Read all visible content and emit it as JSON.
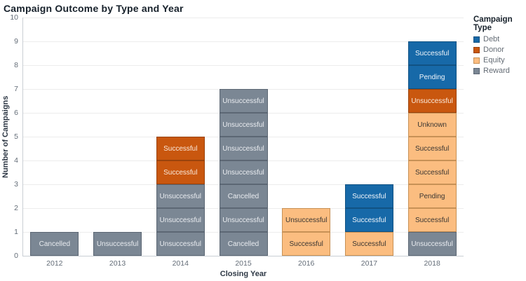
{
  "chart_data": {
    "type": "bar",
    "stacked": true,
    "title": "Campaign Outcome by Type and Year",
    "xlabel": "Closing Year",
    "ylabel": "Number of Campaigns",
    "ylim": [
      0,
      10
    ],
    "yticks": [
      0,
      1,
      2,
      3,
      4,
      5,
      6,
      7,
      8,
      9,
      10
    ],
    "grid": "horizontal",
    "legend_position": "top-right",
    "categories": [
      "2012",
      "2013",
      "2014",
      "2015",
      "2016",
      "2017",
      "2018"
    ],
    "legend": {
      "title": "Campaign Type",
      "entries": [
        {
          "label": "Debt",
          "color": "#1769a8"
        },
        {
          "label": "Donor",
          "color": "#c9570f"
        },
        {
          "label": "Equity",
          "color": "#fbbd80"
        },
        {
          "label": "Reward",
          "color": "#7b8794"
        }
      ]
    },
    "palette": {
      "Debt": {
        "fill": "#1769a8",
        "border": "#115283",
        "text": "#f0f5fa"
      },
      "Donor": {
        "fill": "#c9570f",
        "border": "#9a430c",
        "text": "#faeadd"
      },
      "Equity": {
        "fill": "#fbbd80",
        "border": "#c79156",
        "text": "#3a3632"
      },
      "Reward": {
        "fill": "#7b8794",
        "border": "#5c6774",
        "text": "#e9ecf0"
      }
    },
    "bars": [
      {
        "year": "2012",
        "total": 1,
        "segments": [
          {
            "label": "Cancelled",
            "type": "Reward",
            "value": 1
          }
        ]
      },
      {
        "year": "2013",
        "total": 1,
        "segments": [
          {
            "label": "Unsuccessful",
            "type": "Reward",
            "value": 1
          }
        ]
      },
      {
        "year": "2014",
        "total": 5,
        "segments": [
          {
            "label": "Unsuccessful",
            "type": "Reward",
            "value": 1
          },
          {
            "label": "Unsuccessful",
            "type": "Reward",
            "value": 1
          },
          {
            "label": "Unsuccessful",
            "type": "Reward",
            "value": 1
          },
          {
            "label": "Successful",
            "type": "Donor",
            "value": 1
          },
          {
            "label": "Successful",
            "type": "Donor",
            "value": 1
          }
        ]
      },
      {
        "year": "2015",
        "total": 7,
        "segments": [
          {
            "label": "Cancelled",
            "type": "Reward",
            "value": 1
          },
          {
            "label": "Unsuccessful",
            "type": "Reward",
            "value": 1
          },
          {
            "label": "Cancelled",
            "type": "Reward",
            "value": 1
          },
          {
            "label": "Unsuccessful",
            "type": "Reward",
            "value": 1
          },
          {
            "label": "Unsuccessful",
            "type": "Reward",
            "value": 1
          },
          {
            "label": "Unsuccessful",
            "type": "Reward",
            "value": 1
          },
          {
            "label": "Unsuccessful",
            "type": "Reward",
            "value": 1
          }
        ]
      },
      {
        "year": "2016",
        "total": 2,
        "segments": [
          {
            "label": "Successful",
            "type": "Equity",
            "value": 1
          },
          {
            "label": "Unsuccessful",
            "type": "Equity",
            "value": 1
          }
        ]
      },
      {
        "year": "2017",
        "total": 3,
        "segments": [
          {
            "label": "Successful",
            "type": "Equity",
            "value": 1
          },
          {
            "label": "Successful",
            "type": "Debt",
            "value": 1
          },
          {
            "label": "Successful",
            "type": "Debt",
            "value": 1
          }
        ]
      },
      {
        "year": "2018",
        "total": 9,
        "segments": [
          {
            "label": "Unsuccessful",
            "type": "Reward",
            "value": 1
          },
          {
            "label": "Successful",
            "type": "Equity",
            "value": 1
          },
          {
            "label": "Pending",
            "type": "Equity",
            "value": 1
          },
          {
            "label": "Successful",
            "type": "Equity",
            "value": 1
          },
          {
            "label": "Successful",
            "type": "Equity",
            "value": 1
          },
          {
            "label": "Unknown",
            "type": "Equity",
            "value": 1
          },
          {
            "label": "Unsuccessful",
            "type": "Donor",
            "value": 1
          },
          {
            "label": "Pending",
            "type": "Debt",
            "value": 1
          },
          {
            "label": "Successful",
            "type": "Debt",
            "value": 1
          }
        ]
      }
    ]
  }
}
